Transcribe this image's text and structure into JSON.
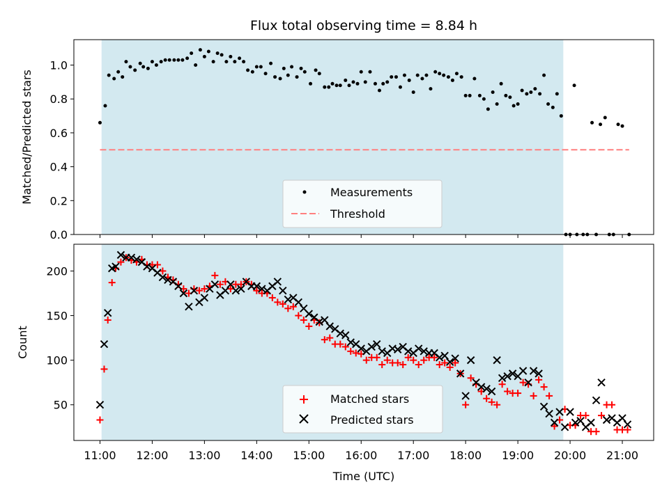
{
  "chart_data": [
    {
      "type": "scatter",
      "title": "Flux total observing time = 8.84 h",
      "xlabel": "",
      "ylabel": "Matched/Predicted stars",
      "ylim": [
        0,
        1.15
      ],
      "xlim_hours": [
        10.5,
        21.6
      ],
      "yticks": [
        "0.0",
        "0.2",
        "0.4",
        "0.6",
        "0.8",
        "1.0"
      ],
      "shaded_span_hours": [
        11.03,
        19.87
      ],
      "shade_color": "#d3e9f0",
      "threshold": {
        "name": "Threshold",
        "value": 0.5,
        "x_range_hours": [
          11.0,
          21.13
        ],
        "color": "#ff7f7f",
        "style": "dashed"
      },
      "legend": {
        "position": "lower-center",
        "entries": [
          "Measurements",
          "Threshold"
        ]
      },
      "series": [
        {
          "name": "Measurements",
          "color": "#000000",
          "marker": "dot",
          "x_hours": [
            11.0,
            11.1,
            11.17,
            11.27,
            11.35,
            11.43,
            11.5,
            11.58,
            11.67,
            11.77,
            11.83,
            11.92,
            12.0,
            12.08,
            12.17,
            12.25,
            12.33,
            12.42,
            12.5,
            12.58,
            12.67,
            12.75,
            12.83,
            12.92,
            13.0,
            13.08,
            13.17,
            13.25,
            13.33,
            13.42,
            13.5,
            13.58,
            13.67,
            13.75,
            13.83,
            13.92,
            14.0,
            14.08,
            14.17,
            14.27,
            14.35,
            14.45,
            14.52,
            14.6,
            14.67,
            14.77,
            14.85,
            14.92,
            15.03,
            15.13,
            15.2,
            15.3,
            15.38,
            15.45,
            15.53,
            15.6,
            15.7,
            15.77,
            15.85,
            15.93,
            16.0,
            16.08,
            16.17,
            16.27,
            16.35,
            16.42,
            16.5,
            16.58,
            16.67,
            16.75,
            16.83,
            16.92,
            17.0,
            17.08,
            17.17,
            17.25,
            17.33,
            17.42,
            17.5,
            17.58,
            17.67,
            17.75,
            17.83,
            17.92,
            18.0,
            18.08,
            18.17,
            18.27,
            18.35,
            18.43,
            18.52,
            18.6,
            18.68,
            18.77,
            18.85,
            18.92,
            19.0,
            19.08,
            19.17,
            19.25,
            19.33,
            19.42,
            19.5,
            19.58,
            19.67,
            19.75,
            19.83,
            19.92,
            20.0,
            20.08,
            20.13,
            20.25,
            20.33,
            20.42,
            20.5,
            20.58,
            20.67,
            20.75,
            20.83,
            20.92,
            21.0,
            21.13
          ],
          "y": [
            0.66,
            0.76,
            0.94,
            0.92,
            0.96,
            0.93,
            1.02,
            0.99,
            0.97,
            1.01,
            0.99,
            0.98,
            1.02,
            1.0,
            1.02,
            1.03,
            1.03,
            1.03,
            1.03,
            1.03,
            1.04,
            1.07,
            1.0,
            1.09,
            1.05,
            1.08,
            1.02,
            1.07,
            1.06,
            1.02,
            1.05,
            1.02,
            1.04,
            1.02,
            0.97,
            0.96,
            0.99,
            0.99,
            0.95,
            1.01,
            0.93,
            0.92,
            0.98,
            0.94,
            0.99,
            0.93,
            0.98,
            0.96,
            0.89,
            0.97,
            0.95,
            0.87,
            0.87,
            0.89,
            0.88,
            0.88,
            0.91,
            0.88,
            0.9,
            0.89,
            0.96,
            0.9,
            0.96,
            0.89,
            0.85,
            0.89,
            0.9,
            0.93,
            0.93,
            0.87,
            0.94,
            0.91,
            0.84,
            0.94,
            0.92,
            0.94,
            0.86,
            0.96,
            0.95,
            0.94,
            0.93,
            0.91,
            0.95,
            0.93,
            0.82,
            0.82,
            0.92,
            0.82,
            0.8,
            0.74,
            0.84,
            0.77,
            0.89,
            0.82,
            0.81,
            0.76,
            0.77,
            0.85,
            0.83,
            0.84,
            0.86,
            0.83,
            0.94,
            0.77,
            0.75,
            0.83,
            0.7,
            0.0,
            0.0,
            0.88,
            0.0,
            0.0,
            0.0,
            0.66,
            0.0,
            0.65,
            0.69,
            0.0,
            0.0,
            0.65,
            0.64,
            0.0
          ]
        }
      ]
    },
    {
      "type": "scatter",
      "title": "",
      "xlabel": "Time (UTC)",
      "ylabel": "Count",
      "ylim": [
        10,
        230
      ],
      "xlim_hours": [
        10.5,
        21.6
      ],
      "xticks": [
        "11:00",
        "12:00",
        "13:00",
        "14:00",
        "15:00",
        "16:00",
        "17:00",
        "18:00",
        "19:00",
        "20:00",
        "21:00"
      ],
      "yticks": [
        "50",
        "100",
        "150",
        "200"
      ],
      "shaded_span_hours": [
        11.03,
        19.87
      ],
      "shade_color": "#d3e9f0",
      "legend": {
        "position": "lower-center",
        "entries": [
          "Matched stars",
          "Predicted stars"
        ]
      },
      "series": [
        {
          "name": "Matched stars",
          "color": "#ff0000",
          "marker": "plus",
          "x_hours": [
            11.0,
            11.08,
            11.15,
            11.23,
            11.3,
            11.4,
            11.5,
            11.6,
            11.7,
            11.8,
            11.9,
            12.0,
            12.1,
            12.2,
            12.3,
            12.4,
            12.5,
            12.6,
            12.7,
            12.8,
            12.9,
            13.0,
            13.1,
            13.2,
            13.3,
            13.4,
            13.5,
            13.6,
            13.7,
            13.8,
            13.9,
            14.0,
            14.1,
            14.2,
            14.3,
            14.4,
            14.5,
            14.6,
            14.7,
            14.8,
            14.9,
            15.0,
            15.1,
            15.2,
            15.3,
            15.4,
            15.5,
            15.6,
            15.7,
            15.8,
            15.9,
            16.0,
            16.1,
            16.2,
            16.3,
            16.4,
            16.5,
            16.6,
            16.7,
            16.8,
            16.9,
            17.0,
            17.1,
            17.2,
            17.3,
            17.4,
            17.5,
            17.6,
            17.7,
            17.8,
            17.9,
            18.0,
            18.1,
            18.2,
            18.3,
            18.4,
            18.5,
            18.6,
            18.7,
            18.8,
            18.9,
            19.0,
            19.1,
            19.2,
            19.3,
            19.4,
            19.5,
            19.6,
            19.7,
            19.8,
            19.9,
            20.0,
            20.1,
            20.2,
            20.3,
            20.4,
            20.5,
            20.6,
            20.7,
            20.8,
            20.9,
            21.0,
            21.1
          ],
          "y": [
            33,
            90,
            145,
            187,
            203,
            210,
            215,
            212,
            210,
            213,
            207,
            207,
            207,
            200,
            193,
            190,
            185,
            180,
            175,
            180,
            178,
            180,
            183,
            195,
            185,
            188,
            180,
            185,
            185,
            188,
            185,
            178,
            175,
            175,
            170,
            165,
            163,
            158,
            160,
            150,
            145,
            138,
            145,
            142,
            123,
            125,
            118,
            118,
            115,
            110,
            108,
            107,
            100,
            103,
            103,
            95,
            100,
            97,
            97,
            95,
            103,
            100,
            95,
            100,
            103,
            103,
            95,
            97,
            92,
            97,
            85,
            50,
            80,
            73,
            65,
            57,
            53,
            50,
            73,
            65,
            63,
            63,
            75,
            73,
            60,
            78,
            70,
            60,
            26,
            33,
            45,
            27,
            27,
            38,
            38,
            20,
            20,
            38,
            50,
            50,
            22,
            22,
            22
          ]
        },
        {
          "name": "Predicted stars",
          "color": "#000000",
          "marker": "x",
          "x_hours": [
            11.0,
            11.08,
            11.15,
            11.23,
            11.3,
            11.4,
            11.5,
            11.6,
            11.7,
            11.8,
            11.9,
            12.0,
            12.1,
            12.2,
            12.3,
            12.4,
            12.5,
            12.6,
            12.7,
            12.8,
            12.9,
            13.0,
            13.1,
            13.2,
            13.3,
            13.4,
            13.5,
            13.6,
            13.7,
            13.8,
            13.9,
            14.0,
            14.1,
            14.2,
            14.3,
            14.4,
            14.5,
            14.6,
            14.7,
            14.8,
            14.9,
            15.0,
            15.1,
            15.2,
            15.3,
            15.4,
            15.5,
            15.6,
            15.7,
            15.8,
            15.9,
            16.0,
            16.1,
            16.2,
            16.3,
            16.4,
            16.5,
            16.6,
            16.7,
            16.8,
            16.9,
            17.0,
            17.1,
            17.2,
            17.3,
            17.4,
            17.5,
            17.6,
            17.7,
            17.8,
            17.9,
            18.0,
            18.1,
            18.2,
            18.3,
            18.4,
            18.5,
            18.6,
            18.7,
            18.8,
            18.9,
            19.0,
            19.1,
            19.2,
            19.3,
            19.4,
            19.5,
            19.6,
            19.7,
            19.8,
            19.9,
            20.0,
            20.1,
            20.2,
            20.3,
            20.4,
            20.5,
            20.6,
            20.7,
            20.8,
            20.9,
            21.0,
            21.1
          ],
          "y": [
            50,
            118,
            153,
            203,
            205,
            218,
            215,
            215,
            213,
            210,
            205,
            203,
            198,
            193,
            190,
            188,
            183,
            175,
            160,
            178,
            165,
            170,
            180,
            185,
            173,
            178,
            185,
            178,
            180,
            188,
            183,
            183,
            180,
            178,
            183,
            188,
            178,
            168,
            170,
            165,
            158,
            152,
            148,
            143,
            145,
            138,
            135,
            130,
            128,
            120,
            118,
            113,
            110,
            115,
            118,
            110,
            108,
            113,
            112,
            115,
            110,
            108,
            113,
            110,
            108,
            108,
            103,
            105,
            98,
            102,
            85,
            60,
            100,
            75,
            70,
            68,
            65,
            100,
            80,
            82,
            85,
            82,
            88,
            75,
            88,
            85,
            48,
            40,
            30,
            42,
            25,
            42,
            30,
            32,
            25,
            30,
            55,
            75,
            33,
            35,
            30,
            35,
            28
          ]
        }
      ]
    }
  ]
}
